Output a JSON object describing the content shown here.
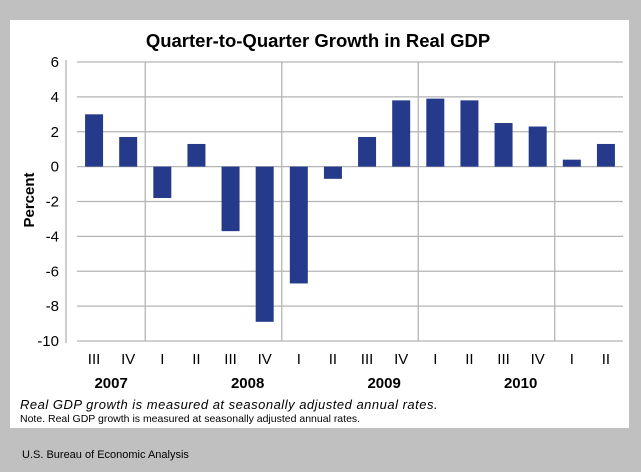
{
  "chart_data": {
    "type": "bar",
    "title": "Quarter-to-Quarter Growth in Real GDP",
    "xlabel": "",
    "ylabel": "Percent",
    "ylim": [
      -10,
      6
    ],
    "yticks": [
      6,
      4,
      2,
      0,
      -2,
      -4,
      -6,
      -8,
      -10
    ],
    "grid": true,
    "legend": "none",
    "bar_color": "#253a8a",
    "categories": [
      "III",
      "IV",
      "I",
      "II",
      "III",
      "IV",
      "I",
      "II",
      "III",
      "IV",
      "I",
      "II",
      "III",
      "IV",
      "I",
      "II"
    ],
    "years": [
      {
        "label": "2007",
        "center_index": 0.5
      },
      {
        "label": "2008",
        "center_index": 4.5
      },
      {
        "label": "2009",
        "center_index": 8.5
      },
      {
        "label": "2010",
        "center_index": 12.5
      }
    ],
    "year_separators_after_index": [
      1,
      5,
      9,
      13
    ],
    "values": [
      3.0,
      1.7,
      -1.8,
      1.3,
      -3.7,
      -8.9,
      -6.7,
      -0.7,
      1.7,
      3.8,
      3.9,
      3.8,
      2.5,
      2.3,
      0.4,
      1.3
    ]
  },
  "notes": {
    "italic": "Real GDP growth is measured at seasonally adjusted annual rates.",
    "small": "Note.  Real GDP  growth is measured at seasonally adjusted annual rates."
  },
  "source": "U.S. Bureau of Economic Analysis"
}
